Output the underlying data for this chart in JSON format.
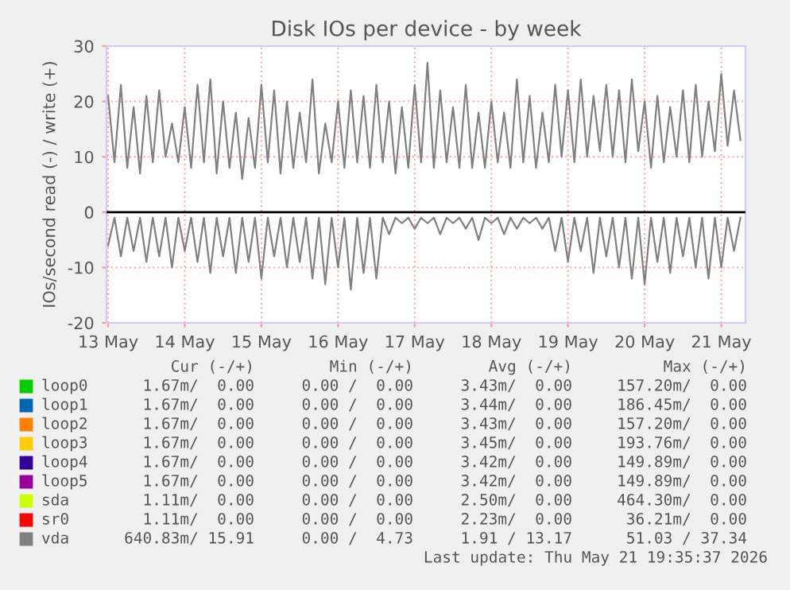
{
  "chart_data": {
    "type": "line",
    "title": "Disk IOs per device - by week",
    "ylabel": "IOs/second read (-) / write (+)",
    "x": [
      "2026-05-13T12:00",
      "2026-05-13T14:00",
      "2026-05-13T16:00",
      "2026-05-13T18:00",
      "2026-05-13T20:00",
      "2026-05-13T22:00",
      "2026-05-14T00:00",
      "2026-05-14T02:00",
      "2026-05-14T04:00",
      "2026-05-14T06:00",
      "2026-05-14T08:00",
      "2026-05-14T10:00",
      "2026-05-14T12:00",
      "2026-05-14T14:00",
      "2026-05-14T16:00",
      "2026-05-14T18:00",
      "2026-05-14T20:00",
      "2026-05-14T22:00",
      "2026-05-15T00:00",
      "2026-05-15T02:00",
      "2026-05-15T04:00",
      "2026-05-15T06:00",
      "2026-05-15T08:00",
      "2026-05-15T10:00",
      "2026-05-15T12:00",
      "2026-05-15T14:00",
      "2026-05-15T16:00",
      "2026-05-15T18:00",
      "2026-05-15T20:00",
      "2026-05-15T22:00",
      "2026-05-16T00:00",
      "2026-05-16T02:00",
      "2026-05-16T04:00",
      "2026-05-16T06:00",
      "2026-05-16T08:00",
      "2026-05-16T10:00",
      "2026-05-16T12:00",
      "2026-05-16T14:00",
      "2026-05-16T16:00",
      "2026-05-16T18:00",
      "2026-05-16T20:00",
      "2026-05-16T22:00",
      "2026-05-17T00:00",
      "2026-05-17T02:00",
      "2026-05-17T04:00",
      "2026-05-17T06:00",
      "2026-05-17T08:00",
      "2026-05-17T10:00",
      "2026-05-17T12:00",
      "2026-05-17T14:00",
      "2026-05-17T16:00",
      "2026-05-17T18:00",
      "2026-05-17T20:00",
      "2026-05-17T22:00",
      "2026-05-18T00:00",
      "2026-05-18T02:00",
      "2026-05-18T04:00",
      "2026-05-18T06:00",
      "2026-05-18T08:00",
      "2026-05-18T10:00",
      "2026-05-18T12:00",
      "2026-05-18T14:00",
      "2026-05-18T16:00",
      "2026-05-18T18:00",
      "2026-05-18T20:00",
      "2026-05-18T22:00",
      "2026-05-19T00:00",
      "2026-05-19T02:00",
      "2026-05-19T04:00",
      "2026-05-19T06:00",
      "2026-05-19T08:00",
      "2026-05-19T10:00",
      "2026-05-19T12:00",
      "2026-05-19T14:00",
      "2026-05-19T16:00",
      "2026-05-19T18:00",
      "2026-05-19T20:00",
      "2026-05-19T22:00",
      "2026-05-20T00:00",
      "2026-05-20T02:00",
      "2026-05-20T04:00",
      "2026-05-20T06:00",
      "2026-05-20T08:00",
      "2026-05-20T10:00",
      "2026-05-20T12:00",
      "2026-05-20T14:00",
      "2026-05-20T16:00",
      "2026-05-20T18:00",
      "2026-05-20T20:00",
      "2026-05-20T22:00",
      "2026-05-21T00:00",
      "2026-05-21T02:00",
      "2026-05-21T04:00",
      "2026-05-21T06:00",
      "2026-05-21T08:00",
      "2026-05-21T10:00",
      "2026-05-21T12:00",
      "2026-05-21T14:00",
      "2026-05-21T16:00",
      "2026-05-21T18:00"
    ],
    "series": [
      {
        "name": "loop0",
        "color": "#00cc00",
        "values": [
          null,
          null,
          null,
          null,
          null,
          null,
          null,
          null,
          null,
          null,
          null,
          null,
          null,
          null,
          null,
          null,
          null,
          null,
          null,
          null,
          null,
          null,
          null,
          null,
          null,
          null,
          null,
          null,
          null,
          null,
          null,
          null,
          null,
          null,
          null,
          null,
          null,
          null,
          null,
          null,
          null,
          null,
          null,
          null,
          null,
          null,
          null,
          null,
          null,
          null,
          null,
          null,
          null,
          null,
          null,
          null,
          null,
          null,
          null,
          null,
          null,
          null,
          null,
          null,
          null,
          null,
          null,
          null,
          null,
          null,
          null,
          null,
          null,
          null,
          null,
          null,
          null,
          null,
          null,
          null,
          null,
          null,
          null,
          null,
          null,
          null,
          null,
          null,
          null,
          null,
          null,
          null,
          null,
          null,
          null,
          null,
          null,
          null,
          null,
          null
        ]
      },
      {
        "name": "loop1",
        "color": "#0066b3",
        "values": [
          null,
          null,
          null,
          null,
          null,
          null,
          null,
          null,
          null,
          null,
          null,
          null,
          null,
          null,
          null,
          null,
          null,
          null,
          null,
          null,
          null,
          null,
          null,
          null,
          null,
          null,
          null,
          null,
          null,
          null,
          null,
          null,
          null,
          null,
          null,
          null,
          null,
          null,
          null,
          null,
          null,
          null,
          null,
          null,
          null,
          null,
          null,
          null,
          null,
          null,
          null,
          null,
          null,
          null,
          null,
          null,
          null,
          null,
          null,
          null,
          null,
          null,
          null,
          null,
          null,
          null,
          null,
          null,
          null,
          null,
          null,
          null,
          null,
          null,
          null,
          null,
          null,
          null,
          null,
          null,
          null,
          null,
          null,
          null,
          null,
          null,
          null,
          null,
          null,
          null,
          null,
          null,
          null,
          null,
          null,
          null,
          null,
          null,
          null,
          null
        ]
      },
      {
        "name": "loop2",
        "color": "#ff8000",
        "values": [
          null,
          null,
          null,
          null,
          null,
          null,
          null,
          null,
          null,
          null,
          null,
          null,
          null,
          null,
          null,
          null,
          null,
          null,
          null,
          null,
          null,
          null,
          null,
          null,
          null,
          null,
          null,
          null,
          null,
          null,
          null,
          null,
          null,
          null,
          null,
          null,
          null,
          null,
          null,
          null,
          null,
          null,
          null,
          null,
          null,
          null,
          null,
          null,
          null,
          null,
          null,
          null,
          null,
          null,
          null,
          null,
          null,
          null,
          null,
          null,
          null,
          null,
          null,
          null,
          null,
          null,
          null,
          null,
          null,
          null,
          null,
          null,
          null,
          null,
          null,
          null,
          null,
          null,
          null,
          null,
          null,
          null,
          null,
          null,
          null,
          null,
          null,
          null,
          null,
          null,
          null,
          null,
          null,
          null,
          null,
          null,
          null,
          null,
          null,
          null
        ]
      },
      {
        "name": "loop3",
        "color": "#ffcc00",
        "values": [
          null,
          null,
          null,
          null,
          null,
          null,
          null,
          null,
          null,
          null,
          null,
          null,
          null,
          null,
          null,
          null,
          null,
          null,
          null,
          null,
          null,
          null,
          null,
          null,
          null,
          null,
          null,
          null,
          null,
          null,
          null,
          null,
          null,
          null,
          null,
          null,
          null,
          null,
          null,
          null,
          null,
          null,
          null,
          null,
          null,
          null,
          null,
          null,
          null,
          null,
          null,
          null,
          null,
          null,
          null,
          null,
          null,
          null,
          null,
          null,
          null,
          null,
          null,
          null,
          null,
          null,
          null,
          null,
          null,
          null,
          null,
          null,
          null,
          null,
          null,
          null,
          null,
          null,
          null,
          null,
          null,
          null,
          null,
          null,
          null,
          null,
          null,
          null,
          null,
          null,
          null,
          null,
          null,
          null,
          null,
          null,
          null,
          null,
          null,
          null
        ]
      },
      {
        "name": "loop4",
        "color": "#330099",
        "values": [
          null,
          null,
          null,
          null,
          null,
          null,
          null,
          null,
          null,
          null,
          null,
          null,
          null,
          null,
          null,
          null,
          null,
          null,
          null,
          null,
          null,
          null,
          null,
          null,
          null,
          null,
          null,
          null,
          null,
          null,
          null,
          null,
          null,
          null,
          null,
          null,
          null,
          null,
          null,
          null,
          null,
          null,
          null,
          null,
          null,
          null,
          null,
          null,
          null,
          null,
          null,
          null,
          null,
          null,
          null,
          null,
          null,
          null,
          null,
          null,
          null,
          null,
          null,
          null,
          null,
          null,
          null,
          null,
          null,
          null,
          null,
          null,
          null,
          null,
          null,
          null,
          null,
          null,
          null,
          null,
          null,
          null,
          null,
          null,
          null,
          null,
          null,
          null,
          null,
          null,
          null,
          null,
          null,
          null,
          null,
          null,
          null,
          null,
          null,
          null
        ]
      },
      {
        "name": "loop5",
        "color": "#990099",
        "values": [
          null,
          null,
          null,
          null,
          null,
          null,
          null,
          null,
          null,
          null,
          null,
          null,
          null,
          null,
          null,
          null,
          null,
          null,
          null,
          null,
          null,
          null,
          null,
          null,
          null,
          null,
          null,
          null,
          null,
          null,
          null,
          null,
          null,
          null,
          null,
          null,
          null,
          null,
          null,
          null,
          null,
          null,
          null,
          null,
          null,
          null,
          null,
          null,
          null,
          null,
          null,
          null,
          null,
          null,
          null,
          null,
          null,
          null,
          null,
          null,
          null,
          null,
          null,
          null,
          null,
          null,
          null,
          null,
          null,
          null,
          null,
          null,
          null,
          null,
          null,
          null,
          null,
          null,
          null,
          null,
          null,
          null,
          null,
          null,
          null,
          null,
          null,
          null,
          null,
          null,
          null,
          null,
          null,
          null,
          null,
          null,
          null,
          null,
          null,
          null
        ]
      },
      {
        "name": "sda",
        "color": "#ccff00",
        "values": [
          null,
          null,
          null,
          null,
          null,
          null,
          null,
          null,
          null,
          null,
          null,
          null,
          null,
          null,
          null,
          null,
          null,
          null,
          null,
          null,
          null,
          null,
          null,
          null,
          null,
          null,
          null,
          null,
          null,
          null,
          null,
          null,
          null,
          null,
          null,
          null,
          null,
          null,
          null,
          null,
          null,
          null,
          null,
          null,
          null,
          null,
          null,
          null,
          null,
          null,
          null,
          null,
          null,
          null,
          null,
          null,
          null,
          null,
          null,
          null,
          null,
          null,
          null,
          null,
          null,
          null,
          null,
          null,
          null,
          null,
          null,
          null,
          null,
          null,
          null,
          null,
          null,
          null,
          null,
          null,
          null,
          null,
          null,
          null,
          null,
          null,
          null,
          null,
          null,
          null,
          null,
          null,
          null,
          null,
          null,
          null,
          null,
          null,
          null,
          null
        ]
      },
      {
        "name": "sr0",
        "color": "#ff0000",
        "values": [
          null,
          null,
          null,
          null,
          null,
          null,
          null,
          null,
          null,
          null,
          null,
          null,
          null,
          null,
          null,
          null,
          null,
          null,
          null,
          null,
          null,
          null,
          null,
          null,
          null,
          null,
          null,
          null,
          null,
          null,
          null,
          null,
          null,
          null,
          null,
          null,
          null,
          null,
          null,
          null,
          null,
          null,
          null,
          null,
          null,
          null,
          null,
          null,
          null,
          null,
          null,
          null,
          null,
          null,
          null,
          null,
          null,
          null,
          null,
          null,
          null,
          null,
          null,
          null,
          null,
          null,
          null,
          null,
          null,
          null,
          null,
          null,
          null,
          null,
          null,
          null,
          null,
          null,
          null,
          null,
          null,
          null,
          null,
          null,
          null,
          null,
          null,
          null,
          null,
          null,
          null,
          null,
          null,
          null,
          null,
          null,
          null,
          null,
          null,
          null
        ]
      },
      {
        "name": "vda",
        "color": "#808080",
        "values": [
          21,
          9,
          23,
          8,
          19,
          7,
          21,
          9,
          22,
          10,
          16,
          9,
          19,
          8,
          23,
          9,
          24,
          7,
          20,
          8,
          18,
          6,
          17,
          8,
          23,
          9,
          22,
          7,
          20,
          8,
          18,
          9,
          24,
          7,
          16,
          9,
          20,
          8,
          22,
          9,
          21,
          8,
          23,
          9,
          20,
          7,
          19,
          8,
          23,
          9,
          27,
          8,
          22,
          9,
          19,
          8,
          23,
          8,
          18,
          8,
          20,
          9,
          18,
          8,
          24,
          9,
          21,
          8,
          18,
          9,
          23,
          10,
          22,
          9,
          24,
          10,
          21,
          11,
          23,
          10,
          22,
          9,
          24,
          11,
          20,
          8,
          21,
          9,
          19,
          10,
          22,
          9,
          23,
          10,
          20,
          11,
          25,
          12,
          22,
          13
        ]
      },
      {
        "color": "#808080",
        "values": [
          -6,
          -1,
          -8,
          -1,
          -7,
          -1,
          -9,
          -1,
          -8,
          -1,
          -10,
          -1,
          -7,
          -1,
          -9,
          -1,
          -11,
          -1,
          -8,
          -1,
          -11,
          -1,
          -9,
          -1,
          -12,
          -1,
          -8,
          -1,
          -10,
          -1,
          -9,
          -1,
          -12,
          -1,
          -13,
          -1,
          -10,
          -1,
          -14,
          -1,
          -11,
          -1,
          -12,
          -1,
          -4,
          -1,
          -2,
          -1,
          -3,
          -1,
          -2,
          -1,
          -4,
          -1,
          -2,
          -1,
          -3,
          -1,
          -5,
          -1,
          -2,
          -1,
          -4,
          -1,
          -3,
          -1,
          -2,
          -1,
          -3,
          -1,
          -7,
          -1,
          -9,
          -1,
          -7,
          -1,
          -11,
          -1,
          -8,
          -1,
          -10,
          -1,
          -12,
          -1,
          -13,
          -1,
          -9,
          -1,
          -11,
          -1,
          -8,
          -1,
          -10,
          -1,
          -12,
          -1,
          -10,
          -1,
          -7,
          -1
        ]
      }
    ],
    "xlim": [
      "2026-05-13T11:30",
      "2026-05-21T19:35"
    ],
    "xticks": [
      {
        "value": "2026-05-13T12:00",
        "label": "13 May"
      },
      {
        "value": "2026-05-14T12:00",
        "label": "14 May"
      },
      {
        "value": "2026-05-15T12:00",
        "label": "15 May"
      },
      {
        "value": "2026-05-16T12:00",
        "label": "16 May"
      },
      {
        "value": "2026-05-17T12:00",
        "label": "17 May"
      },
      {
        "value": "2026-05-18T12:00",
        "label": "18 May"
      },
      {
        "value": "2026-05-19T12:00",
        "label": "19 May"
      },
      {
        "value": "2026-05-20T12:00",
        "label": "20 May"
      },
      {
        "value": "2026-05-21T12:00",
        "label": "21 May"
      }
    ],
    "ylim": [
      -20,
      30
    ],
    "yticks": [
      -20,
      -10,
      0,
      10,
      20,
      30
    ],
    "grid": true,
    "legend": "bottom",
    "ref_lines": [
      {
        "axis": "y",
        "value": 0,
        "color": "#000000"
      }
    ],
    "annotations": [
      "Cur (-/+)",
      "Min (-/+)",
      "Avg (-/+)",
      "Max (-/+)",
      "1.67m/  0.00",
      "0.00 /  0.00",
      "3.43m/  0.00",
      "157.20m/  0.00",
      "1.67m/  0.00",
      "0.00 /  0.00",
      "3.44m/  0.00",
      "186.45m/  0.00",
      "1.67m/  0.00",
      "0.00 /  0.00",
      "3.43m/  0.00",
      "157.20m/  0.00",
      "1.67m/  0.00",
      "0.00 /  0.00",
      "3.45m/  0.00",
      "193.76m/  0.00",
      "1.67m/  0.00",
      "0.00 /  0.00",
      "3.42m/  0.00",
      "149.89m/  0.00",
      "1.67m/  0.00",
      "0.00 /  0.00",
      "3.42m/  0.00",
      "149.89m/  0.00",
      "1.11m/  0.00",
      "0.00 /  0.00",
      "2.50m/  0.00",
      "464.30m/  0.00",
      "1.11m/  0.00",
      "0.00 /  0.00",
      "2.23m/  0.00",
      "36.21m/  0.00",
      "640.83m/ 15.91",
      "0.00 /  4.73",
      "1.91 / 13.17",
      "51.03 / 37.34",
      "Last update: Thu May 21 19:35:37 2026"
    ]
  }
}
